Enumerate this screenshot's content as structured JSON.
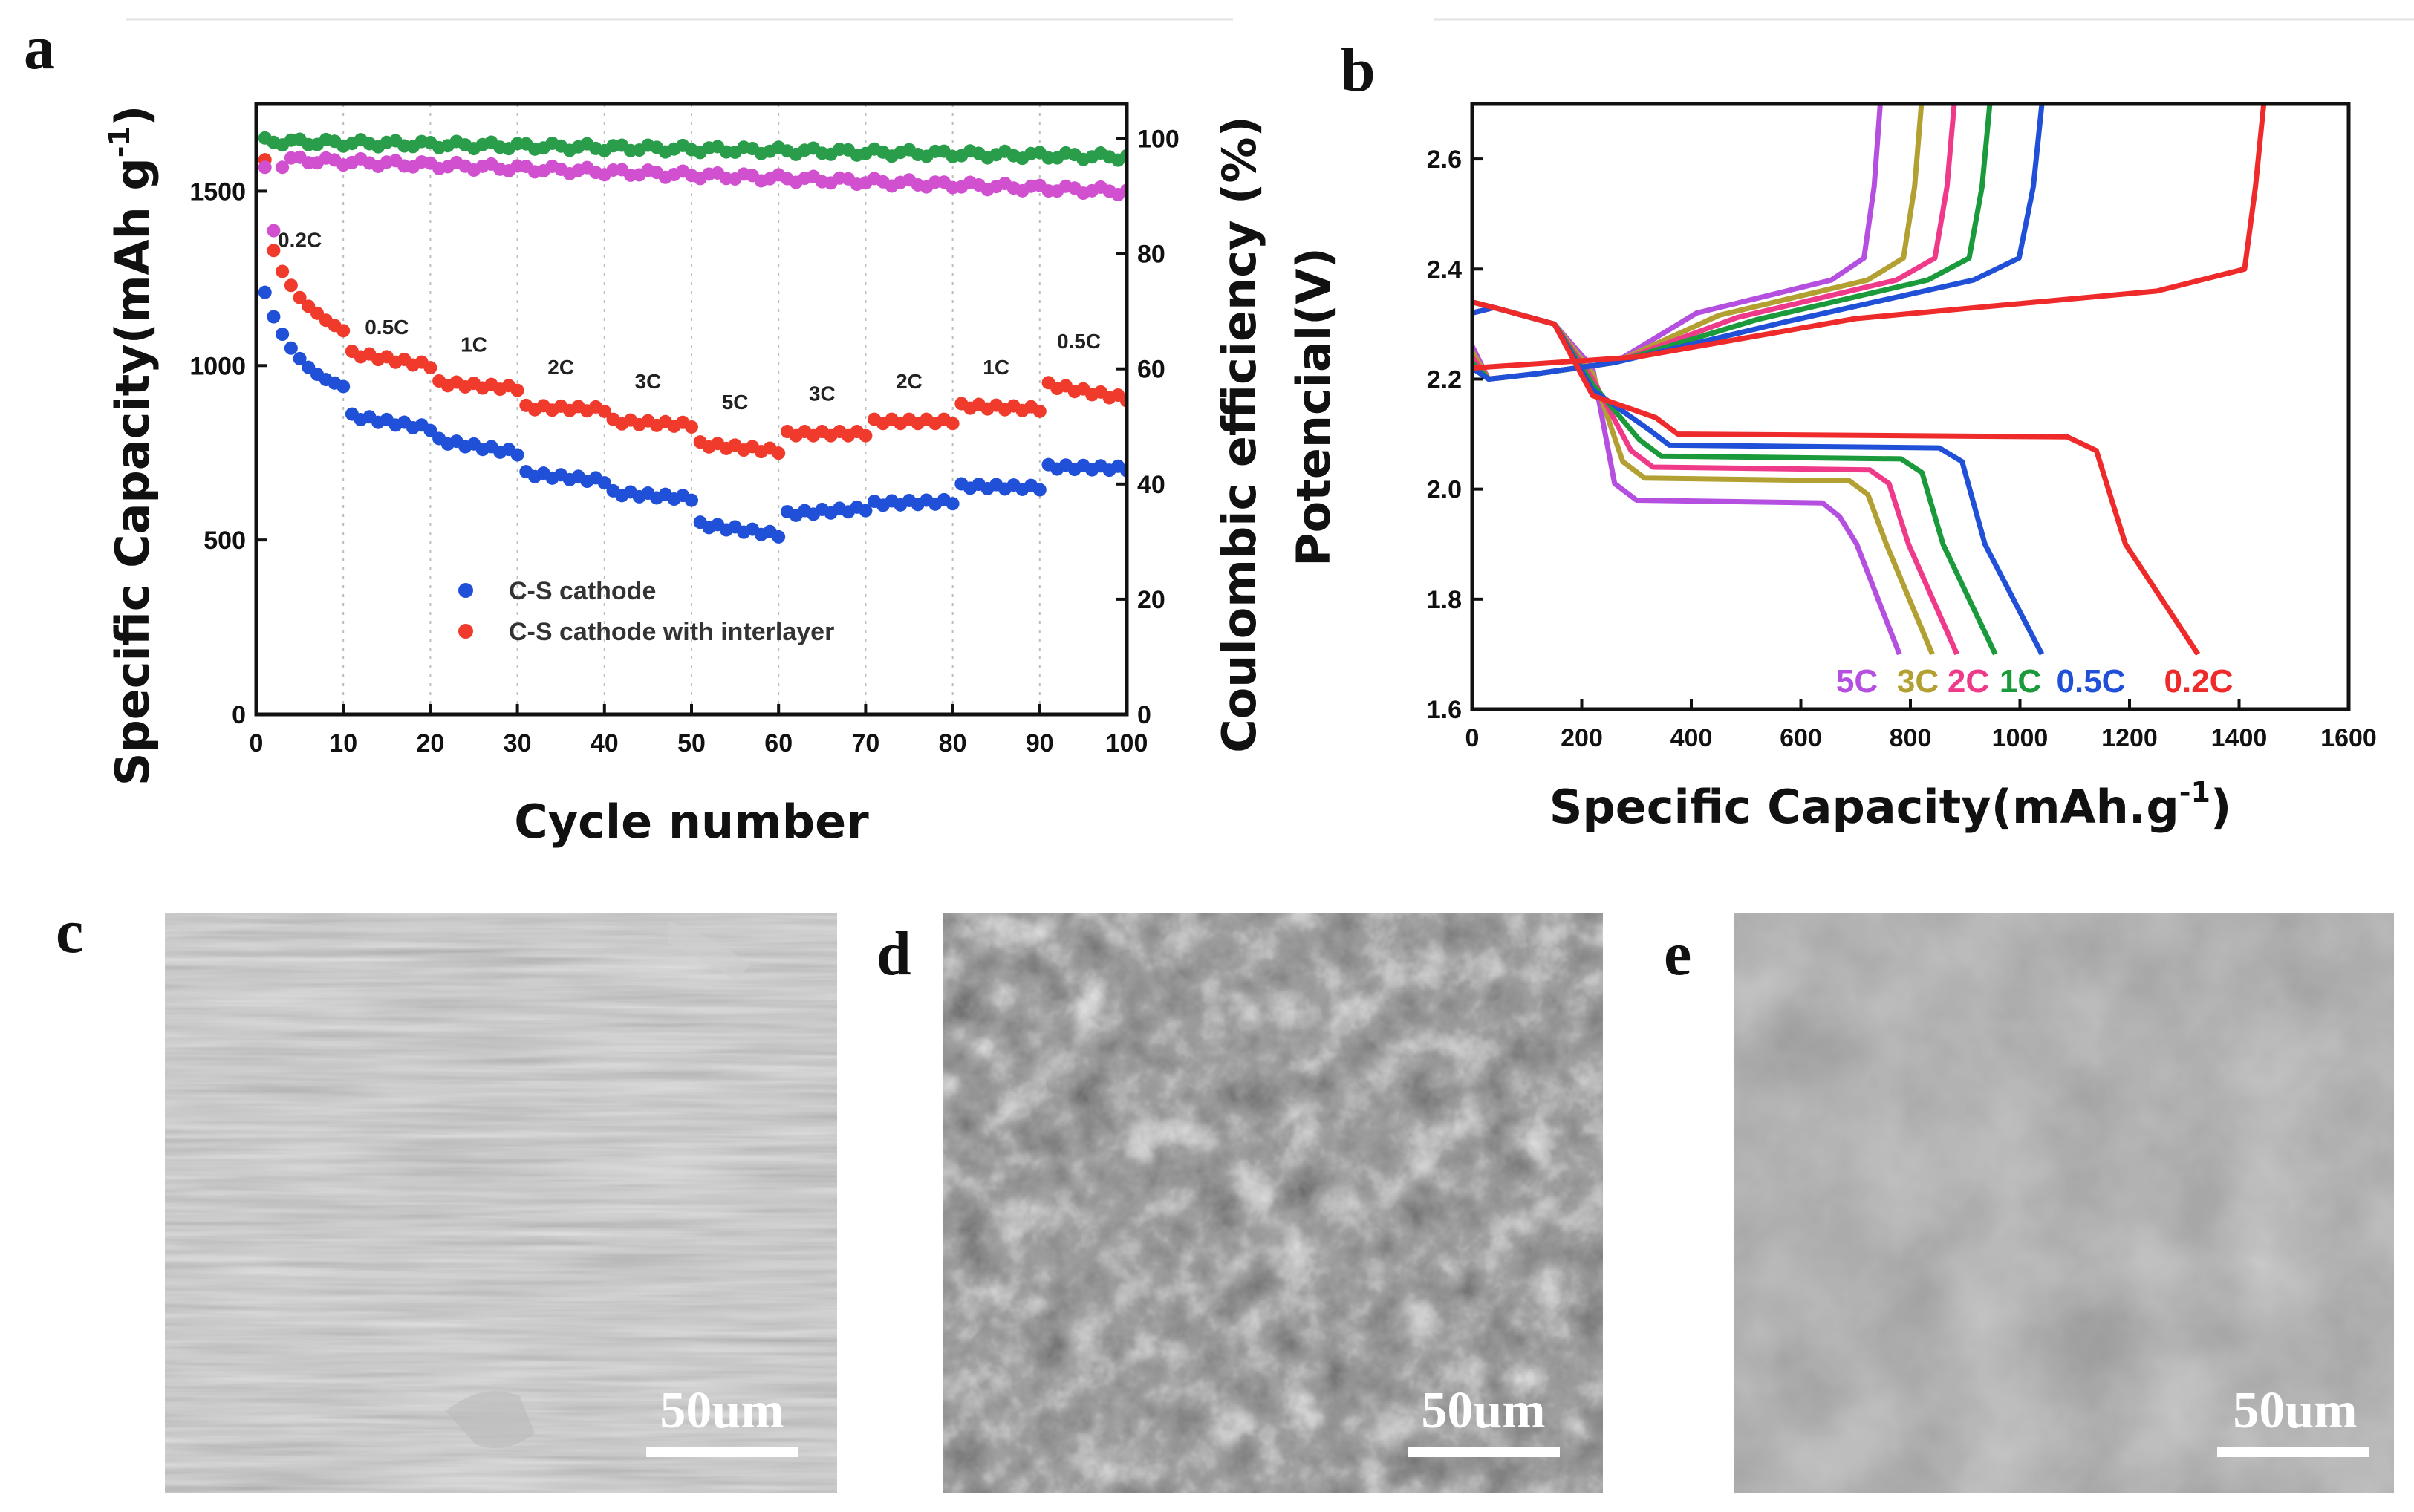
{
  "figure": {
    "panel_labels": [
      "a",
      "b",
      "c",
      "d",
      "e"
    ]
  },
  "chart_data": [
    {
      "panel": "a",
      "type": "scatter",
      "xlabel": "Cycle number",
      "ylabel": "Specific Capacity(mAh g",
      "ylabel_sup": "-1",
      "ylabel_end": ")",
      "y2label": "Coulombic efficiency (%)",
      "xlim": [
        0,
        100
      ],
      "ylim": [
        0,
        1750
      ],
      "y2lim": [
        0,
        106
      ],
      "xticks": [
        0,
        10,
        20,
        30,
        40,
        50,
        60,
        70,
        80,
        90,
        100
      ],
      "yticks": [
        0,
        500,
        1000,
        1500
      ],
      "y2ticks": [
        0,
        20,
        40,
        60,
        80,
        100
      ],
      "rate_labels": [
        {
          "text": "0.2C",
          "x": 5,
          "y": 1340
        },
        {
          "text": "0.5C",
          "x": 15,
          "y": 1090
        },
        {
          "text": "1C",
          "x": 25,
          "y": 1040
        },
        {
          "text": "2C",
          "x": 35,
          "y": 975
        },
        {
          "text": "3C",
          "x": 45,
          "y": 935
        },
        {
          "text": "5C",
          "x": 55,
          "y": 875
        },
        {
          "text": "3C",
          "x": 65,
          "y": 900
        },
        {
          "text": "2C",
          "x": 75,
          "y": 935
        },
        {
          "text": "1C",
          "x": 85,
          "y": 975
        },
        {
          "text": "0.5C",
          "x": 94.5,
          "y": 1050
        }
      ],
      "legend": [
        {
          "name": "C-S cathode",
          "color": "#2150d8"
        },
        {
          "name": "C-S cathode with interlayer",
          "color": "#ef3a2c"
        }
      ],
      "series": [
        {
          "name": "C-S cathode",
          "axis": "left",
          "color": "#2150d8",
          "segments": [
            {
              "x0": 1,
              "x1": 10,
              "values": [
                1210,
                1140,
                1090,
                1050,
                1020,
                995,
                975,
                960,
                950,
                940
              ]
            },
            {
              "x0": 11,
              "x1": 20,
              "start": 855,
              "end": 820
            },
            {
              "x0": 21,
              "x1": 30,
              "start": 785,
              "end": 750
            },
            {
              "x0": 31,
              "x1": 40,
              "start": 690,
              "end": 670
            },
            {
              "x0": 41,
              "x1": 50,
              "start": 635,
              "end": 620
            },
            {
              "x0": 51,
              "x1": 60,
              "start": 545,
              "end": 515
            },
            {
              "x0": 61,
              "x1": 70,
              "start": 575,
              "end": 590
            },
            {
              "x0": 71,
              "x1": 80,
              "start": 605,
              "end": 610
            },
            {
              "x0": 81,
              "x1": 90,
              "start": 655,
              "end": 650
            },
            {
              "x0": 91,
              "x1": 100,
              "start": 710,
              "end": 705
            }
          ]
        },
        {
          "name": "C-S cathode with interlayer",
          "axis": "left",
          "color": "#ef3a2c",
          "segments": [
            {
              "x0": 1,
              "x1": 10,
              "values": [
                1590,
                1330,
                1270,
                1230,
                1195,
                1170,
                1150,
                1130,
                1115,
                1100
              ]
            },
            {
              "x0": 11,
              "x1": 20,
              "start": 1035,
              "end": 1000
            },
            {
              "x0": 21,
              "x1": 30,
              "start": 950,
              "end": 935
            },
            {
              "x0": 31,
              "x1": 40,
              "start": 880,
              "end": 875
            },
            {
              "x0": 41,
              "x1": 50,
              "start": 840,
              "end": 830
            },
            {
              "x0": 51,
              "x1": 60,
              "start": 775,
              "end": 755
            },
            {
              "x0": 61,
              "x1": 70,
              "start": 805,
              "end": 805
            },
            {
              "x0": 71,
              "x1": 80,
              "start": 840,
              "end": 840
            },
            {
              "x0": 81,
              "x1": 90,
              "start": 885,
              "end": 875
            },
            {
              "x0": 91,
              "x1": 100,
              "start": 945,
              "end": 905
            }
          ]
        },
        {
          "name": "Coulombic efficiency (interlayer)",
          "axis": "right",
          "color": "#2a9d4b",
          "start": 99.5,
          "end": 96.8
        },
        {
          "name": "Coulombic efficiency (C-S)",
          "axis": "right",
          "color": "#d150d0",
          "start": 96.5,
          "end": 90.8
        }
      ]
    },
    {
      "panel": "b",
      "type": "line",
      "xlabel": "Specific Capacity(mAh.g",
      "xlabel_sup": "-1",
      "xlabel_end": ")",
      "ylabel": "Potencial(V)",
      "xlim": [
        0,
        1600
      ],
      "ylim": [
        1.6,
        2.7
      ],
      "xticks": [
        0,
        200,
        400,
        600,
        800,
        1000,
        1200,
        1400,
        1600
      ],
      "yticks": [
        1.6,
        1.8,
        2.0,
        2.2,
        2.4,
        2.6
      ],
      "curve_labels": [
        "5C",
        "3C",
        "2C",
        "1C",
        "0.5C",
        "0.2C"
      ],
      "series": [
        {
          "name": "5C",
          "color": "#b44fe0",
          "discharge_end": 780,
          "charge_end": 745,
          "plateau": 1.98
        },
        {
          "name": "3C",
          "color": "#b2a033",
          "discharge_end": 840,
          "charge_end": 820,
          "plateau": 2.02
        },
        {
          "name": "2C",
          "color": "#ef3a8a",
          "discharge_end": 885,
          "charge_end": 880,
          "plateau": 2.04
        },
        {
          "name": "1C",
          "color": "#1a9a3a",
          "discharge_end": 955,
          "charge_end": 945,
          "plateau": 2.06
        },
        {
          "name": "0.5C",
          "color": "#2150d8",
          "discharge_end": 1040,
          "charge_end": 1040,
          "plateau": 2.08
        },
        {
          "name": "0.2C",
          "color": "#ef2a2a",
          "discharge_end": 1325,
          "charge_end": 1445,
          "plateau": 2.1
        }
      ]
    }
  ],
  "images": [
    {
      "panel": "c",
      "scale_label": "50um"
    },
    {
      "panel": "d",
      "scale_label": "50um"
    },
    {
      "panel": "e",
      "scale_label": "50um"
    }
  ]
}
